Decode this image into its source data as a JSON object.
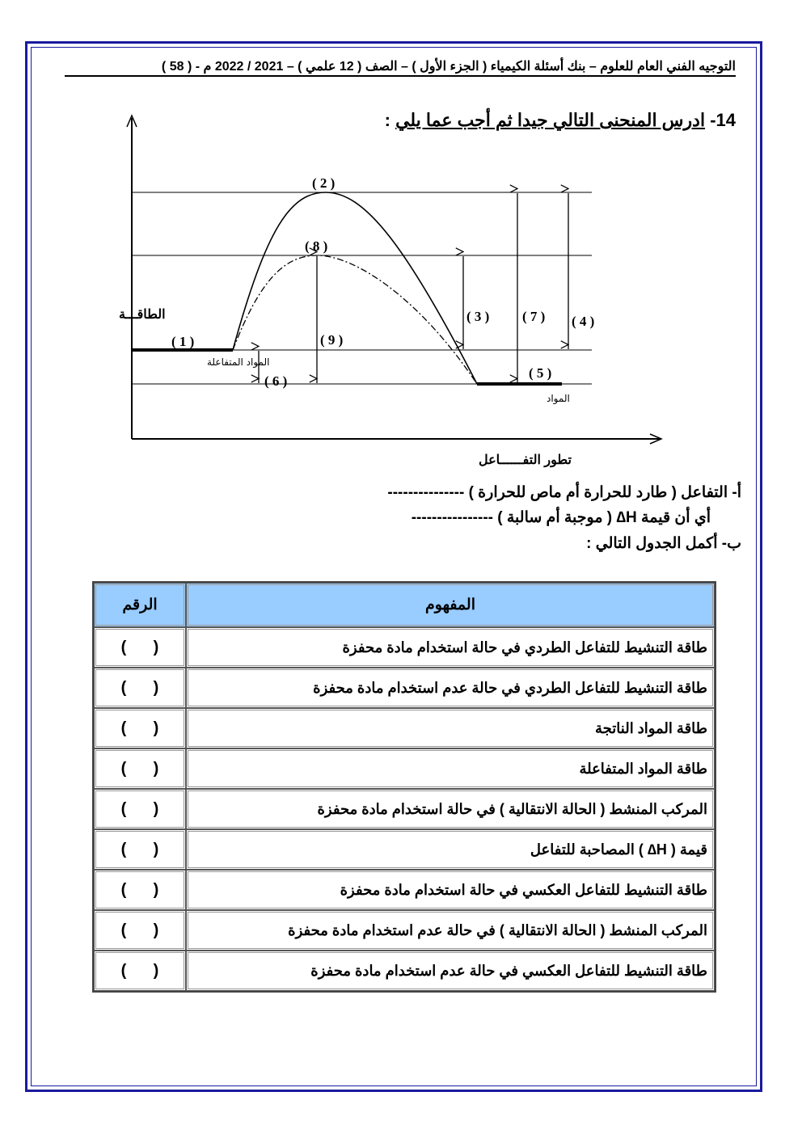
{
  "header": "التوجيه الفني العام للعلوم – بنك أسئلة الكيمياء ( الجزء الأول ) – الصف ( 12 علمي ) – 2021 / 2022 م - ( 58 )",
  "question": {
    "number": "14-",
    "title": "ادرس المنحنى التالي جيدا ثم أجب عما يلي",
    "colon": ":"
  },
  "diagram": {
    "y_axis_label": "الطاقـــة",
    "x_axis_label": "تطور التفــــــاعل",
    "reactants_label": "المواد المتفاعلة",
    "products_label": "المواد",
    "labels": {
      "l1": "( 1 )",
      "l2": "( 2 )",
      "l3": "( 3 )",
      "l4": "( 4 )",
      "l5": "( 5 )",
      "l6": "( 6 )",
      "l7": "( 7 )",
      "l8": "( 8 )",
      "l9": "( 9 )"
    }
  },
  "parts": {
    "a1": "أ-  التفاعل ( طارد للحرارة أم ماص للحرارة ) ---------------",
    "a2": "أي أن قيمة H∆ ( موجبة أم سالبة ) ----------------",
    "b": "ب- أكمل الجدول التالي :"
  },
  "table": {
    "headers": {
      "concept": "المفهوم",
      "number": "الرقم"
    },
    "blank": "(      )",
    "rows": [
      "طاقة التنشيط للتفاعل الطردي في حالة استخدام مادة محفزة",
      "طاقة التنشيط للتفاعل الطردي في حالة عدم استخدام مادة محفزة",
      "طاقة المواد الناتجة",
      "طاقة المواد المتفاعلة",
      "المركب المنشط ( الحالة الانتقالية ) في حالة استخدام مادة محفزة",
      "قيمة ( H∆ ) المصاحبة للتفاعل",
      "طاقة التنشيط للتفاعل العكسي في حالة استخدام مادة محفزة",
      "المركب المنشط ( الحالة الانتقالية ) في حالة عدم استخدام مادة محفزة",
      "طاقة التنشيط للتفاعل العكسي في حالة عدم استخدام مادة محفزة"
    ]
  },
  "colors": {
    "frame": "#1a1aa0",
    "table_header": "#99ccff"
  }
}
